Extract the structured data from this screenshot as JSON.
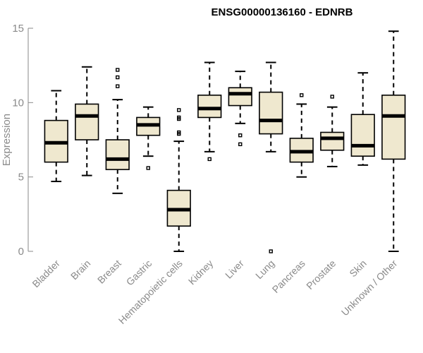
{
  "chart_data": {
    "type": "boxplot",
    "title": "ENSG00000136160 - EDNRB",
    "ylabel": "Expression",
    "xlabel": "",
    "ylim": [
      0,
      15
    ],
    "yticks": [
      0,
      5,
      10,
      15
    ],
    "colors": {
      "box_fill": "#efe8cf",
      "stroke": "#000000",
      "axis": "#8a8a8a"
    },
    "categories": [
      "Bladder",
      "Brain",
      "Breast",
      "Gastric",
      "Hematopoietic cells",
      "Kidney",
      "Liver",
      "Lung",
      "Pancreas",
      "Prostate",
      "Skin",
      "Unknown / Other"
    ],
    "boxes": [
      {
        "min": 4.7,
        "q1": 6.0,
        "median": 7.3,
        "q3": 8.8,
        "max": 10.8,
        "outliers": []
      },
      {
        "min": 5.1,
        "q1": 7.5,
        "median": 9.1,
        "q3": 9.9,
        "max": 12.4,
        "outliers": []
      },
      {
        "min": 3.9,
        "q1": 5.5,
        "median": 6.2,
        "q3": 7.5,
        "max": 10.2,
        "outliers": [
          11.1,
          11.7,
          12.2
        ]
      },
      {
        "min": 6.4,
        "q1": 7.8,
        "median": 8.5,
        "q3": 9.0,
        "max": 9.7,
        "outliers": [
          5.6
        ]
      },
      {
        "min": 0.0,
        "q1": 1.7,
        "median": 2.8,
        "q3": 4.1,
        "max": 7.4,
        "outliers": [
          7.9,
          8.0,
          8.9,
          9.0,
          9.5
        ]
      },
      {
        "min": 6.7,
        "q1": 9.0,
        "median": 9.6,
        "q3": 10.5,
        "max": 12.7,
        "outliers": [
          6.2
        ]
      },
      {
        "min": 8.6,
        "q1": 9.8,
        "median": 10.6,
        "q3": 11.0,
        "max": 12.1,
        "outliers": [
          7.2,
          7.8
        ]
      },
      {
        "min": 6.7,
        "q1": 7.9,
        "median": 8.8,
        "q3": 10.7,
        "max": 12.7,
        "outliers": [
          0.0
        ]
      },
      {
        "min": 5.0,
        "q1": 6.0,
        "median": 6.7,
        "q3": 7.6,
        "max": 9.9,
        "outliers": [
          10.5
        ]
      },
      {
        "min": 5.7,
        "q1": 6.8,
        "median": 7.6,
        "q3": 8.0,
        "max": 9.7,
        "outliers": [
          10.4
        ]
      },
      {
        "min": 5.8,
        "q1": 6.4,
        "median": 7.1,
        "q3": 9.2,
        "max": 12.0,
        "outliers": []
      },
      {
        "min": 0.0,
        "q1": 6.2,
        "median": 9.1,
        "q3": 10.5,
        "max": 14.8,
        "outliers": []
      }
    ]
  }
}
